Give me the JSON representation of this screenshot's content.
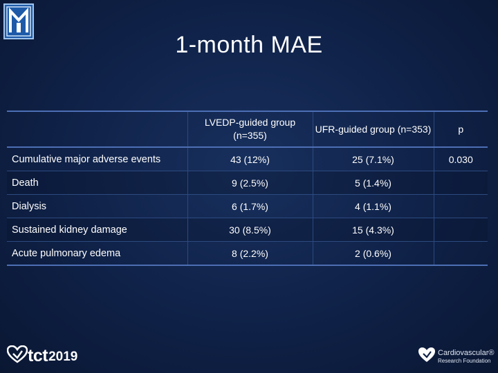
{
  "slide": {
    "title": "1-month MAE"
  },
  "table": {
    "headers": [
      "",
      "LVEDP-guided group (n=355)",
      "UFR-guided group (n=353)",
      "p"
    ],
    "rows": [
      {
        "label": "Cumulative major adverse events",
        "lvedp": "43 (12%)",
        "ufr": "25 (7.1%)",
        "p": "0.030"
      },
      {
        "label": "Death",
        "lvedp": "9 (2.5%)",
        "ufr": "5 (1.4%)",
        "p": ""
      },
      {
        "label": "Dialysis",
        "lvedp": "6 (1.7%)",
        "ufr": "4 (1.1%)",
        "p": ""
      },
      {
        "label": "Sustained kidney damage",
        "lvedp": "30 (8.5%)",
        "ufr": "15 (4.3%)",
        "p": ""
      },
      {
        "label": "Acute pulmonary edema",
        "lvedp": "8 (2.2%)",
        "ufr": "2 (0.6%)",
        "p": ""
      }
    ]
  },
  "footer": {
    "left_logo_text": "tct",
    "left_logo_year": "2019",
    "right_logo_line1": "Cardiovascular",
    "right_logo_line2": "Research Foundation",
    "right_logo_mark": "®",
    "icons": [
      "institution-logo-icon",
      "tct-heart-icon",
      "crf-heart-icon"
    ],
    "colors": {
      "background": "#0f2147",
      "table_rule": "#4d6fb5",
      "logo_blue": "#1e5aa8"
    }
  }
}
